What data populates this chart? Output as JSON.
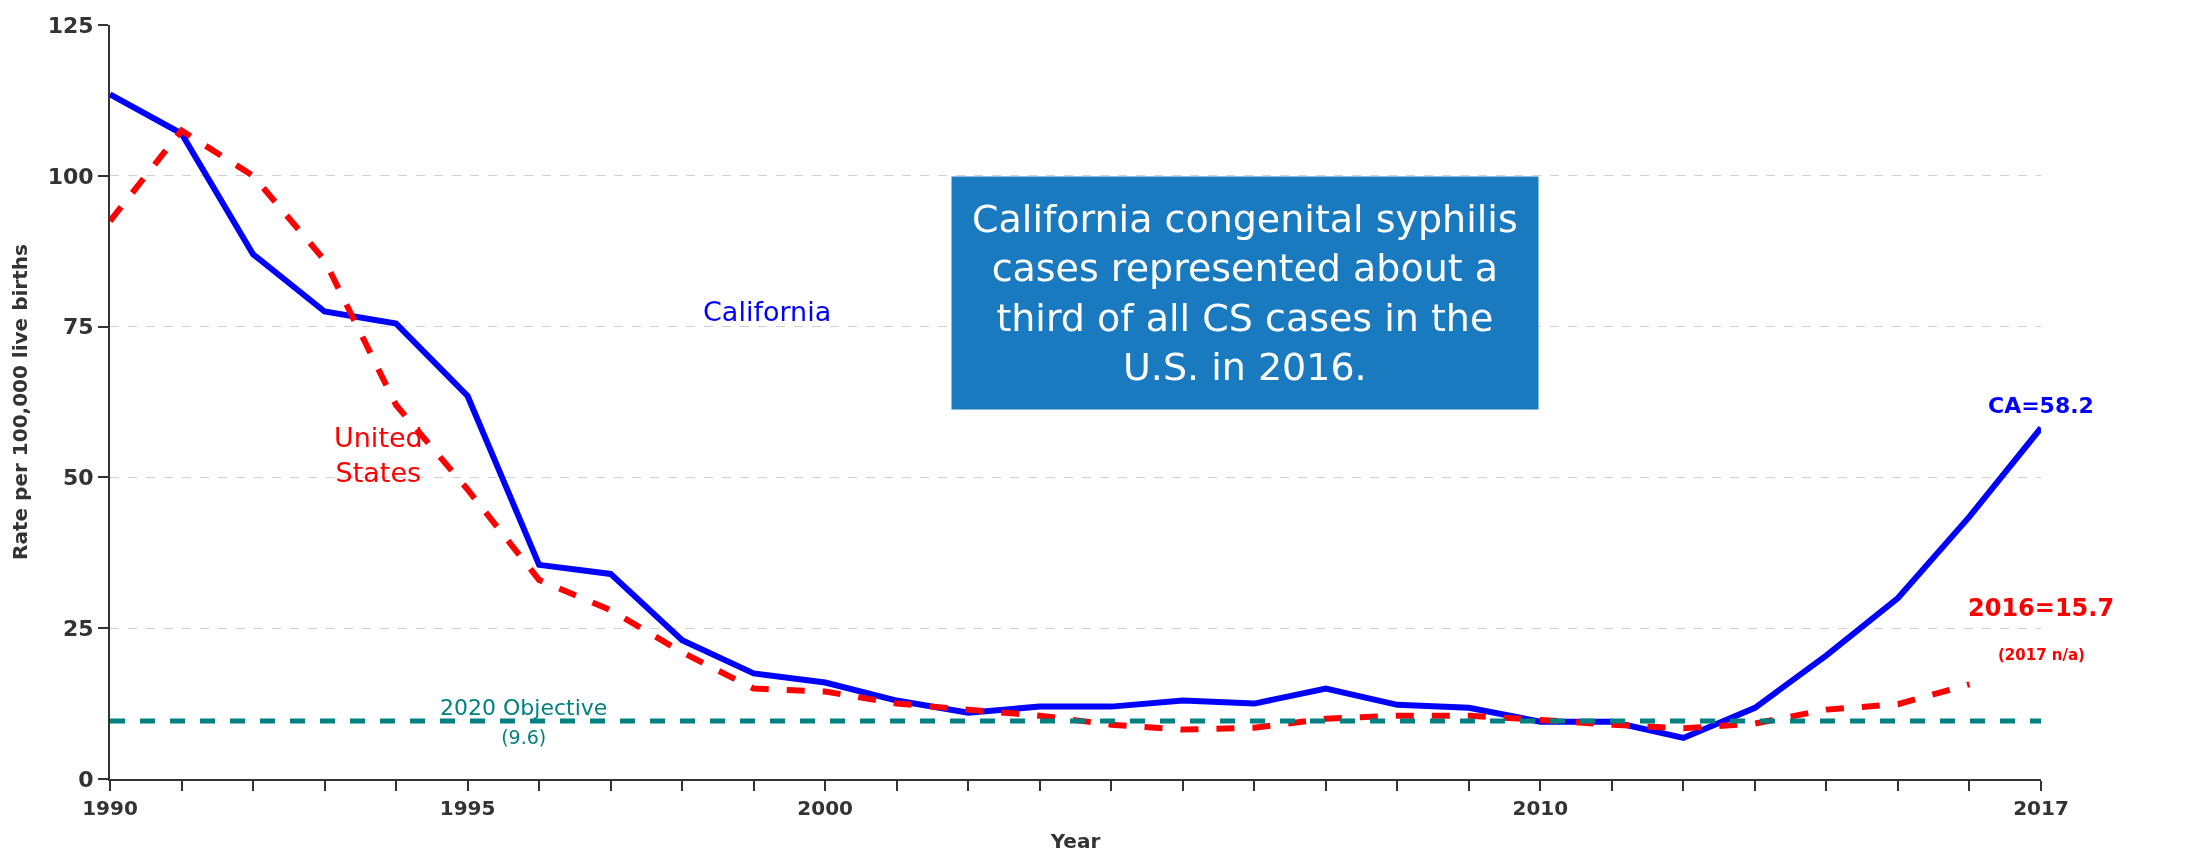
{
  "chart_data": {
    "type": "line",
    "xlabel": "Year",
    "ylabel": "Rate per 100,000 live births",
    "x": [
      1990,
      1991,
      1992,
      1993,
      1994,
      1995,
      1996,
      1997,
      1998,
      1999,
      2000,
      2001,
      2002,
      2003,
      2004,
      2005,
      2006,
      2007,
      2008,
      2009,
      2010,
      2011,
      2012,
      2013,
      2014,
      2015,
      2016,
      2017
    ],
    "series": [
      {
        "name": "California",
        "color": "#0000ff",
        "line_style": "solid",
        "values": [
          113.5,
          107,
          87,
          77.5,
          75.5,
          63.5,
          35.5,
          34,
          23,
          17.5,
          16,
          13,
          11,
          12,
          12,
          13,
          12.5,
          15,
          12.3,
          11.8,
          9.5,
          9.5,
          6.8,
          11.8,
          20.5,
          30,
          43.5,
          58.2
        ]
      },
      {
        "name": "United\nStates",
        "color": "#ff0000",
        "line_style": "dashed",
        "values": [
          92.5,
          107.5,
          100,
          86,
          62,
          48,
          33,
          28,
          21,
          15,
          14.5,
          12.5,
          11.5,
          10.5,
          9,
          8.2,
          8.5,
          10,
          10.5,
          10.5,
          9.8,
          9,
          8.4,
          9.2,
          11.5,
          12.4,
          15.7,
          null
        ]
      }
    ],
    "xlim": [
      1990,
      2017
    ],
    "xticks": [
      1990,
      {
        "value": 1991,
        "label": null
      },
      {
        "value": 1992,
        "label": null
      },
      {
        "value": 1993,
        "label": null
      },
      {
        "value": 1994,
        "label": null
      },
      1995,
      {
        "value": 1996,
        "label": null
      },
      {
        "value": 1997,
        "label": null
      },
      {
        "value": 1998,
        "label": null
      },
      {
        "value": 1999,
        "label": null
      },
      2000,
      {
        "value": 2001,
        "label": null
      },
      {
        "value": 2002,
        "label": null
      },
      {
        "value": 2003,
        "label": null
      },
      {
        "value": 2004,
        "label": null
      },
      {
        "value": 2005,
        "label": null
      },
      {
        "value": 2006,
        "label": null
      },
      {
        "value": 2007,
        "label": null
      },
      {
        "value": 2008,
        "label": null
      },
      {
        "value": 2009,
        "label": null
      },
      2010,
      {
        "value": 2011,
        "label": null
      },
      {
        "value": 2012,
        "label": null
      },
      {
        "value": 2013,
        "label": null
      },
      {
        "value": 2014,
        "label": null
      },
      {
        "value": 2015,
        "label": null
      },
      {
        "value": 2016,
        "label": null
      },
      2017
    ],
    "ylim": [
      0,
      125
    ],
    "yticks": [
      0,
      25,
      50,
      75,
      100,
      125
    ],
    "grid": "y",
    "legend": false,
    "marker": "none",
    "ref_lines": [
      {
        "axis": "y",
        "value": 9.6,
        "label": "2020 Objective\n(9.6)",
        "color": "#008080",
        "line_style": "dashed"
      }
    ],
    "annotations": [
      "California congenital syphilis\ncases represented about a\nthird of all CS cases in the\nU.S. in 2016.",
      {
        "text": "CA=58.2",
        "x": 2017,
        "y": 58.2
      },
      "2016=15.7",
      "(2017 n/a)"
    ]
  }
}
